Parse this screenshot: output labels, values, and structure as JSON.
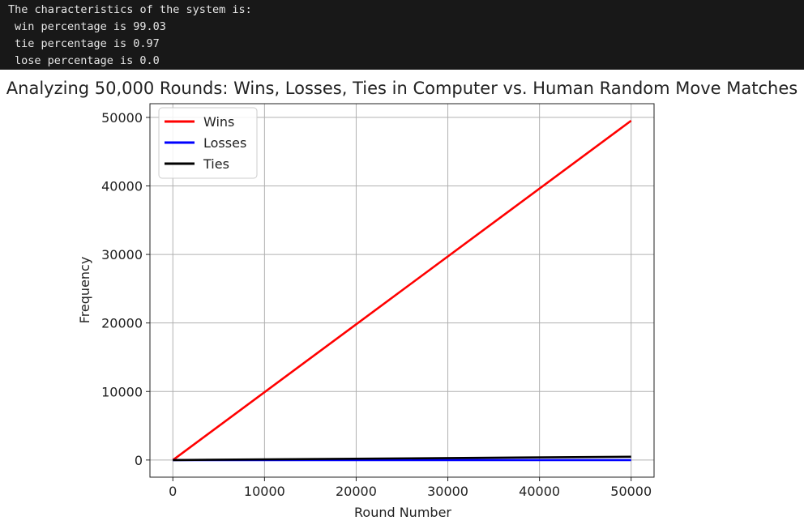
{
  "console": {
    "lines": [
      "The characteristics of the system is:",
      "win percentage is 99.03",
      "tie percentage is 0.97",
      "lose percentage is 0.0"
    ]
  },
  "colors": {
    "console_bg": "#181818",
    "wins": "#ff0000",
    "losses": "#0000ff",
    "ties": "#000000",
    "grid": "#b0b0b0"
  },
  "chart_data": {
    "type": "line",
    "title": "Analyzing 50,000 Rounds: Wins, Losses, Ties in Computer vs. Human Random Move Matches",
    "xlabel": "Round Number",
    "ylabel": "Frequency",
    "xlim": [
      -2500,
      52500
    ],
    "ylim": [
      -2500,
      52000
    ],
    "xticks": [
      0,
      10000,
      20000,
      30000,
      40000,
      50000
    ],
    "yticks": [
      0,
      10000,
      20000,
      30000,
      40000,
      50000
    ],
    "grid": true,
    "legend_position": "top-left",
    "series": [
      {
        "name": "Wins",
        "color": "#ff0000",
        "x": [
          0,
          50000
        ],
        "y": [
          0,
          49515
        ]
      },
      {
        "name": "Losses",
        "color": "#0000ff",
        "x": [
          0,
          50000
        ],
        "y": [
          0,
          0
        ]
      },
      {
        "name": "Ties",
        "color": "#000000",
        "x": [
          0,
          50000
        ],
        "y": [
          0,
          485
        ]
      }
    ]
  }
}
